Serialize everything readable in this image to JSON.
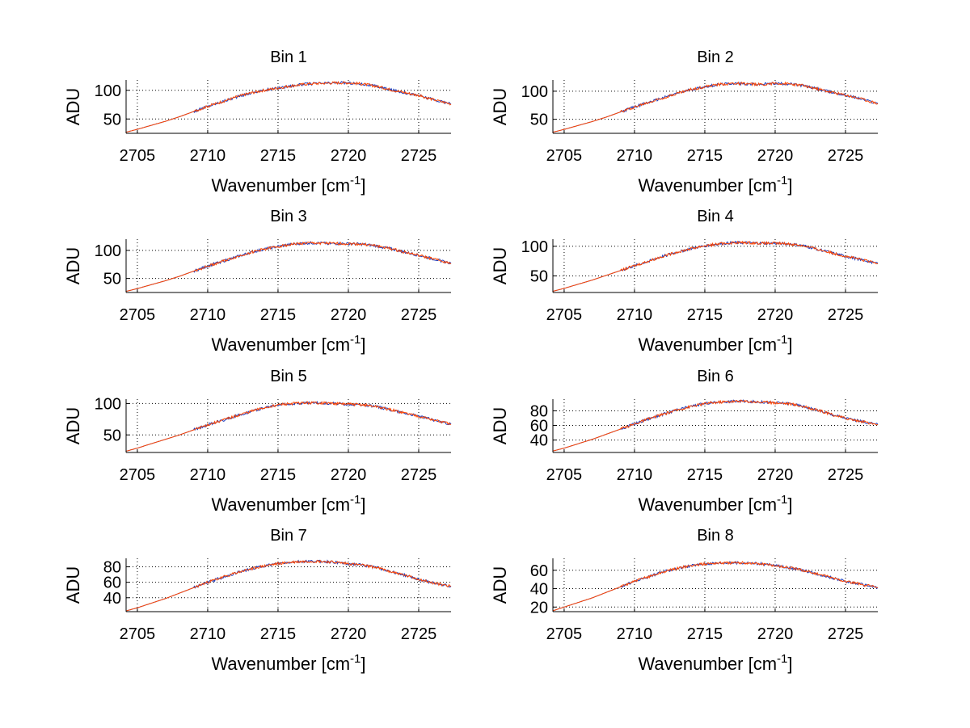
{
  "colors": {
    "background": "#ffffff",
    "axis": "#000000",
    "grid": "#000000",
    "series_1": "#1f3fbf",
    "series_2": "#ff4500"
  },
  "chart_data": [
    {
      "type": "line",
      "title": "Bin 1",
      "xlabel": "Wavenumber [cm",
      "xlabel_superscript": "-1",
      "xlabel_suffix": "]",
      "ylabel": "ADU",
      "xlim": [
        2704.2,
        2727.3
      ],
      "ylim": [
        25,
        118
      ],
      "xticks": [
        2705,
        2710,
        2715,
        2720,
        2725
      ],
      "yticks": [
        50,
        100
      ],
      "grid": true,
      "series": [
        {
          "x": [
            2704.2,
            2705,
            2706,
            2707,
            2708,
            2709,
            2710,
            2711,
            2712,
            2713,
            2714,
            2715,
            2716,
            2717,
            2718,
            2719,
            2720,
            2721,
            2722,
            2723,
            2724,
            2725,
            2726,
            2727.3
          ],
          "values": [
            27,
            32,
            39,
            46,
            54,
            63,
            72,
            80,
            88,
            95,
            100,
            104,
            108,
            111,
            112,
            113,
            113,
            111,
            107,
            101,
            96,
            91,
            84,
            76
          ]
        },
        {
          "x": [
            2704.2,
            2705,
            2706,
            2707,
            2708,
            2709,
            2710,
            2711,
            2712,
            2713,
            2714,
            2715,
            2716,
            2717,
            2718,
            2719,
            2720,
            2721,
            2722,
            2723,
            2724,
            2725,
            2726,
            2727.3
          ],
          "values": [
            27,
            32,
            39,
            46,
            54,
            63,
            72,
            80,
            88,
            95,
            100,
            104,
            108,
            111,
            112,
            113,
            113,
            111,
            107,
            101,
            96,
            91,
            84,
            76
          ]
        }
      ]
    },
    {
      "type": "line",
      "title": "Bin 2",
      "xlabel": "Wavenumber [cm",
      "xlabel_superscript": "-1",
      "xlabel_suffix": "]",
      "ylabel": "ADU",
      "xlim": [
        2704.2,
        2727.3
      ],
      "ylim": [
        25,
        120
      ],
      "xticks": [
        2705,
        2710,
        2715,
        2720,
        2725
      ],
      "yticks": [
        50,
        100
      ],
      "grid": true,
      "series": [
        {
          "x": [
            2704.2,
            2705,
            2706,
            2707,
            2708,
            2709,
            2710,
            2711,
            2712,
            2713,
            2714,
            2715,
            2716,
            2717,
            2718,
            2719,
            2720,
            2721,
            2722,
            2723,
            2724,
            2725,
            2726,
            2727.3
          ],
          "values": [
            27,
            32,
            39,
            46,
            54,
            63,
            72,
            80,
            88,
            96,
            103,
            108,
            112,
            114,
            113,
            112,
            114,
            113,
            110,
            104,
            98,
            93,
            87,
            78
          ]
        },
        {
          "x": [
            2704.2,
            2705,
            2706,
            2707,
            2708,
            2709,
            2710,
            2711,
            2712,
            2713,
            2714,
            2715,
            2716,
            2717,
            2718,
            2719,
            2720,
            2721,
            2722,
            2723,
            2724,
            2725,
            2726,
            2727.3
          ],
          "values": [
            27,
            32,
            39,
            46,
            54,
            63,
            72,
            80,
            88,
            96,
            103,
            108,
            112,
            114,
            113,
            112,
            114,
            113,
            110,
            104,
            98,
            93,
            87,
            78
          ]
        }
      ]
    },
    {
      "type": "line",
      "title": "Bin 3",
      "xlabel": "Wavenumber [cm",
      "xlabel_superscript": "-1",
      "xlabel_suffix": "]",
      "ylabel": "ADU",
      "xlim": [
        2704.2,
        2727.3
      ],
      "ylim": [
        25,
        120
      ],
      "xticks": [
        2705,
        2710,
        2715,
        2720,
        2725
      ],
      "yticks": [
        50,
        100
      ],
      "grid": true,
      "series": [
        {
          "x": [
            2704.2,
            2705,
            2706,
            2707,
            2708,
            2709,
            2710,
            2711,
            2712,
            2713,
            2714,
            2715,
            2716,
            2717,
            2718,
            2719,
            2720,
            2721,
            2722,
            2723,
            2724,
            2725,
            2726,
            2727.3
          ],
          "values": [
            27,
            32,
            39,
            46,
            54,
            63,
            72,
            80,
            88,
            96,
            102,
            107,
            111,
            113,
            113,
            112,
            112,
            111,
            108,
            103,
            97,
            91,
            85,
            77
          ]
        },
        {
          "x": [
            2704.2,
            2705,
            2706,
            2707,
            2708,
            2709,
            2710,
            2711,
            2712,
            2713,
            2714,
            2715,
            2716,
            2717,
            2718,
            2719,
            2720,
            2721,
            2722,
            2723,
            2724,
            2725,
            2726,
            2727.3
          ],
          "values": [
            27,
            32,
            39,
            46,
            54,
            63,
            72,
            80,
            88,
            96,
            102,
            107,
            111,
            113,
            113,
            112,
            112,
            111,
            108,
            103,
            97,
            91,
            85,
            77
          ]
        }
      ]
    },
    {
      "type": "line",
      "title": "Bin 4",
      "xlabel": "Wavenumber [cm",
      "xlabel_superscript": "-1",
      "xlabel_suffix": "]",
      "ylabel": "ADU",
      "xlim": [
        2704.2,
        2727.3
      ],
      "ylim": [
        22,
        112
      ],
      "xticks": [
        2705,
        2710,
        2715,
        2720,
        2725
      ],
      "yticks": [
        50,
        100
      ],
      "grid": true,
      "series": [
        {
          "x": [
            2704.2,
            2705,
            2706,
            2707,
            2708,
            2709,
            2710,
            2711,
            2712,
            2713,
            2714,
            2715,
            2716,
            2717,
            2718,
            2719,
            2720,
            2721,
            2722,
            2723,
            2724,
            2725,
            2726,
            2727.3
          ],
          "values": [
            24,
            29,
            36,
            43,
            51,
            59,
            67,
            75,
            83,
            90,
            96,
            101,
            104,
            106,
            106,
            105,
            105,
            104,
            101,
            95,
            89,
            83,
            78,
            71
          ]
        },
        {
          "x": [
            2704.2,
            2705,
            2706,
            2707,
            2708,
            2709,
            2710,
            2711,
            2712,
            2713,
            2714,
            2715,
            2716,
            2717,
            2718,
            2719,
            2720,
            2721,
            2722,
            2723,
            2724,
            2725,
            2726,
            2727.3
          ],
          "values": [
            24,
            29,
            36,
            43,
            51,
            59,
            67,
            75,
            83,
            90,
            96,
            101,
            104,
            106,
            106,
            105,
            105,
            104,
            101,
            95,
            89,
            83,
            78,
            71
          ]
        }
      ]
    },
    {
      "type": "line",
      "title": "Bin 5",
      "xlabel": "Wavenumber [cm",
      "xlabel_superscript": "-1",
      "xlabel_suffix": "]",
      "ylabel": "ADU",
      "xlim": [
        2704.2,
        2727.3
      ],
      "ylim": [
        22,
        107
      ],
      "xticks": [
        2705,
        2710,
        2715,
        2720,
        2725
      ],
      "yticks": [
        50,
        100
      ],
      "grid": true,
      "series": [
        {
          "x": [
            2704.2,
            2705,
            2706,
            2707,
            2708,
            2709,
            2710,
            2711,
            2712,
            2713,
            2714,
            2715,
            2716,
            2717,
            2718,
            2719,
            2720,
            2721,
            2722,
            2723,
            2724,
            2725,
            2726,
            2727.3
          ],
          "values": [
            24,
            29,
            36,
            43,
            50,
            58,
            66,
            73,
            80,
            87,
            93,
            98,
            100,
            101,
            101,
            100,
            99,
            98,
            95,
            90,
            85,
            80,
            74,
            67
          ]
        },
        {
          "x": [
            2704.2,
            2705,
            2706,
            2707,
            2708,
            2709,
            2710,
            2711,
            2712,
            2713,
            2714,
            2715,
            2716,
            2717,
            2718,
            2719,
            2720,
            2721,
            2722,
            2723,
            2724,
            2725,
            2726,
            2727.3
          ],
          "values": [
            24,
            29,
            36,
            43,
            50,
            58,
            66,
            73,
            80,
            87,
            93,
            98,
            100,
            101,
            101,
            100,
            99,
            98,
            95,
            90,
            85,
            80,
            74,
            67
          ]
        }
      ]
    },
    {
      "type": "line",
      "title": "Bin 6",
      "xlabel": "Wavenumber [cm",
      "xlabel_superscript": "-1",
      "xlabel_suffix": "]",
      "ylabel": "ADU",
      "xlim": [
        2704.2,
        2727.3
      ],
      "ylim": [
        23,
        96
      ],
      "xticks": [
        2705,
        2710,
        2715,
        2720,
        2725
      ],
      "yticks": [
        40,
        60,
        80
      ],
      "grid": true,
      "series": [
        {
          "x": [
            2704.2,
            2705,
            2706,
            2707,
            2708,
            2709,
            2710,
            2711,
            2712,
            2713,
            2714,
            2715,
            2716,
            2717,
            2718,
            2719,
            2720,
            2721,
            2722,
            2723,
            2724,
            2725,
            2726,
            2727.3
          ],
          "values": [
            25,
            29,
            35,
            41,
            48,
            55,
            62,
            69,
            75,
            81,
            86,
            90,
            92,
            93,
            93,
            92,
            91,
            90,
            86,
            81,
            75,
            70,
            66,
            61
          ]
        },
        {
          "x": [
            2704.2,
            2705,
            2706,
            2707,
            2708,
            2709,
            2710,
            2711,
            2712,
            2713,
            2714,
            2715,
            2716,
            2717,
            2718,
            2719,
            2720,
            2721,
            2722,
            2723,
            2724,
            2725,
            2726,
            2727.3
          ],
          "values": [
            25,
            29,
            35,
            41,
            48,
            55,
            62,
            69,
            75,
            81,
            86,
            90,
            92,
            93,
            93,
            92,
            91,
            90,
            86,
            81,
            75,
            70,
            66,
            61
          ]
        }
      ]
    },
    {
      "type": "line",
      "title": "Bin 7",
      "xlabel": "Wavenumber [cm",
      "xlabel_superscript": "-1",
      "xlabel_suffix": "]",
      "ylabel": "ADU",
      "xlim": [
        2704.2,
        2727.3
      ],
      "ylim": [
        22,
        91
      ],
      "xticks": [
        2705,
        2710,
        2715,
        2720,
        2725
      ],
      "yticks": [
        40,
        60,
        80
      ],
      "grid": true,
      "series": [
        {
          "x": [
            2704.2,
            2705,
            2706,
            2707,
            2708,
            2709,
            2710,
            2711,
            2712,
            2713,
            2714,
            2715,
            2716,
            2717,
            2718,
            2719,
            2720,
            2721,
            2722,
            2723,
            2724,
            2725,
            2726,
            2727.3
          ],
          "values": [
            23,
            27,
            33,
            39,
            46,
            53,
            60,
            66,
            72,
            77,
            81,
            84,
            86,
            87,
            87,
            86,
            84,
            82,
            79,
            74,
            69,
            64,
            59,
            55
          ]
        },
        {
          "x": [
            2704.2,
            2705,
            2706,
            2707,
            2708,
            2709,
            2710,
            2711,
            2712,
            2713,
            2714,
            2715,
            2716,
            2717,
            2718,
            2719,
            2720,
            2721,
            2722,
            2723,
            2724,
            2725,
            2726,
            2727.3
          ],
          "values": [
            23,
            27,
            33,
            39,
            46,
            53,
            60,
            66,
            72,
            77,
            81,
            84,
            86,
            87,
            87,
            86,
            84,
            82,
            79,
            74,
            69,
            64,
            59,
            55
          ]
        }
      ]
    },
    {
      "type": "line",
      "title": "Bin 8",
      "xlabel": "Wavenumber [cm",
      "xlabel_superscript": "-1",
      "xlabel_suffix": "]",
      "ylabel": "ADU",
      "xlim": [
        2704.2,
        2727.3
      ],
      "ylim": [
        15,
        73
      ],
      "xticks": [
        2705,
        2710,
        2715,
        2720,
        2725
      ],
      "yticks": [
        20,
        40,
        60
      ],
      "grid": true,
      "series": [
        {
          "x": [
            2704.2,
            2705,
            2706,
            2707,
            2708,
            2709,
            2710,
            2711,
            2712,
            2713,
            2714,
            2715,
            2716,
            2717,
            2718,
            2719,
            2720,
            2721,
            2722,
            2723,
            2724,
            2725,
            2726,
            2727.3
          ],
          "values": [
            16,
            20,
            25,
            30,
            36,
            42,
            48,
            53,
            58,
            62,
            65,
            67,
            68,
            68,
            68,
            67,
            65,
            63,
            60,
            56,
            52,
            48,
            45,
            41
          ]
        },
        {
          "x": [
            2704.2,
            2705,
            2706,
            2707,
            2708,
            2709,
            2710,
            2711,
            2712,
            2713,
            2714,
            2715,
            2716,
            2717,
            2718,
            2719,
            2720,
            2721,
            2722,
            2723,
            2724,
            2725,
            2726,
            2727.3
          ],
          "values": [
            16,
            20,
            25,
            30,
            36,
            42,
            48,
            53,
            58,
            62,
            65,
            67,
            68,
            68,
            68,
            67,
            65,
            63,
            60,
            56,
            52,
            48,
            45,
            41
          ]
        }
      ]
    }
  ]
}
